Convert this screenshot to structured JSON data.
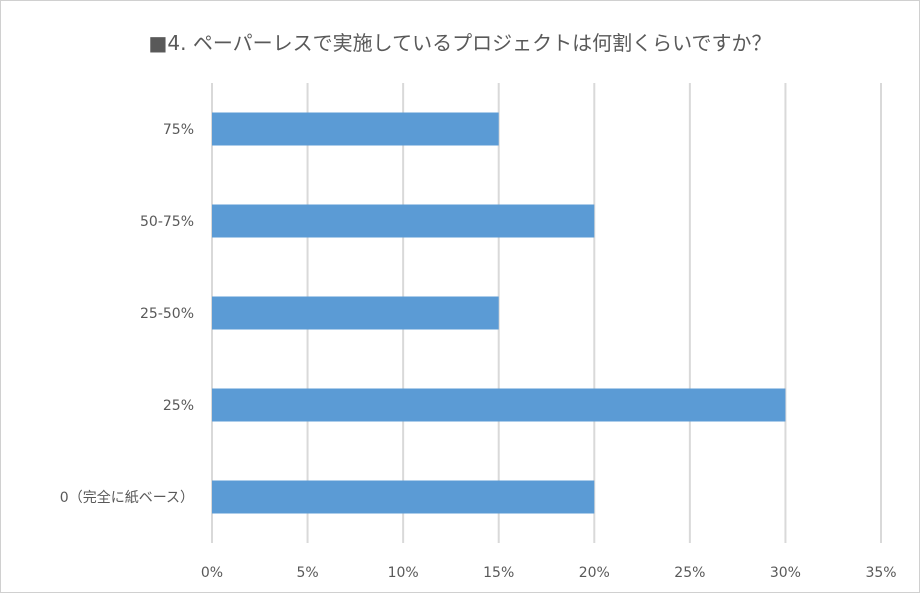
{
  "chart_data": {
    "type": "bar",
    "orientation": "horizontal",
    "title": "■4. ペーパーレスで実施しているプロジェクトは何割くらいですか？",
    "categories": [
      "75%",
      "50-75%",
      "25-50%",
      "25%",
      "0（完全に紙ベース）"
    ],
    "values": [
      15,
      20,
      15,
      30,
      20
    ],
    "x_ticks": [
      "0%",
      "5%",
      "10%",
      "15%",
      "20%",
      "25%",
      "30%",
      "35%"
    ],
    "xlim": [
      0,
      35
    ],
    "grid": true,
    "bar_color": "#5b9bd5",
    "grid_color": "#d9d9d9",
    "legend": "none"
  }
}
